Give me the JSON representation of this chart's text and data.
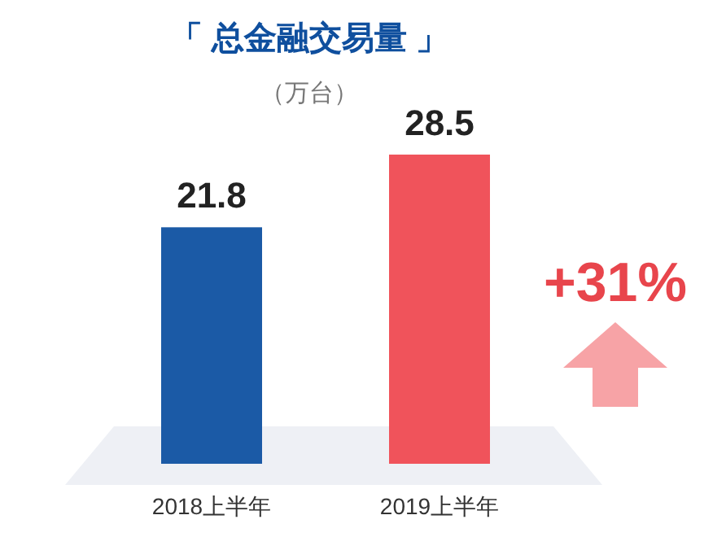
{
  "chart_data": {
    "type": "bar",
    "title": "「 总金融交易量 」",
    "subtitle": "（万台）",
    "categories": [
      "2018上半年",
      "2019上半年"
    ],
    "values": [
      21.8,
      28.5
    ],
    "colors": [
      "#1b5aa6",
      "#f0535b"
    ],
    "data_labels": true,
    "annotations": [
      "+31%"
    ]
  }
}
